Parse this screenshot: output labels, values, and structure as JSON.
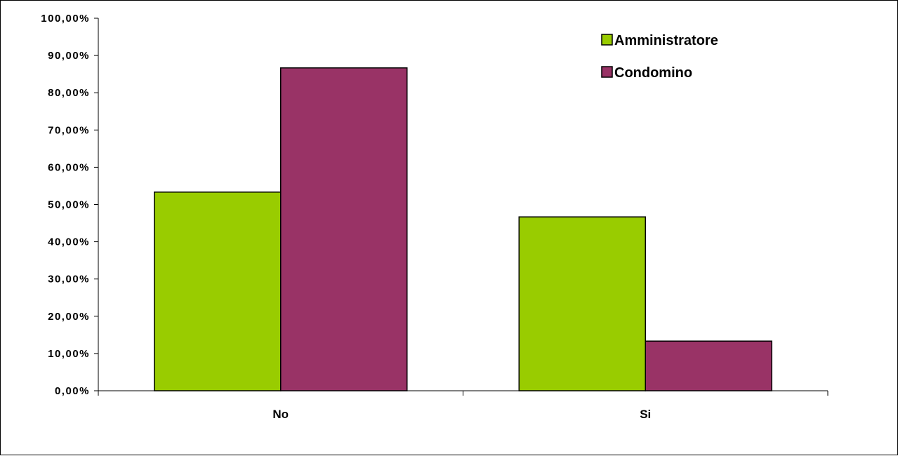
{
  "chart_data": {
    "type": "bar",
    "categories": [
      "No",
      "Si"
    ],
    "series": [
      {
        "name": "Amministratore",
        "values": [
          53.33,
          46.67
        ],
        "color": "#99cc00"
      },
      {
        "name": "Condomino",
        "values": [
          86.67,
          13.33
        ],
        "color": "#993366"
      }
    ],
    "ylim": [
      0,
      100
    ],
    "y_ticks": [
      {
        "value": 0,
        "label": "0,00%"
      },
      {
        "value": 10,
        "label": "10,00%"
      },
      {
        "value": 20,
        "label": "20,00%"
      },
      {
        "value": 30,
        "label": "30,00%"
      },
      {
        "value": 40,
        "label": "40,00%"
      },
      {
        "value": 50,
        "label": "50,00%"
      },
      {
        "value": 60,
        "label": "60,00%"
      },
      {
        "value": 70,
        "label": "70,00%"
      },
      {
        "value": 80,
        "label": "80,00%"
      },
      {
        "value": 90,
        "label": "90,00%"
      },
      {
        "value": 100,
        "label": "100,00%"
      }
    ],
    "title": "",
    "xlabel": "",
    "ylabel": "",
    "grid": false,
    "legend_position": "top-right"
  }
}
